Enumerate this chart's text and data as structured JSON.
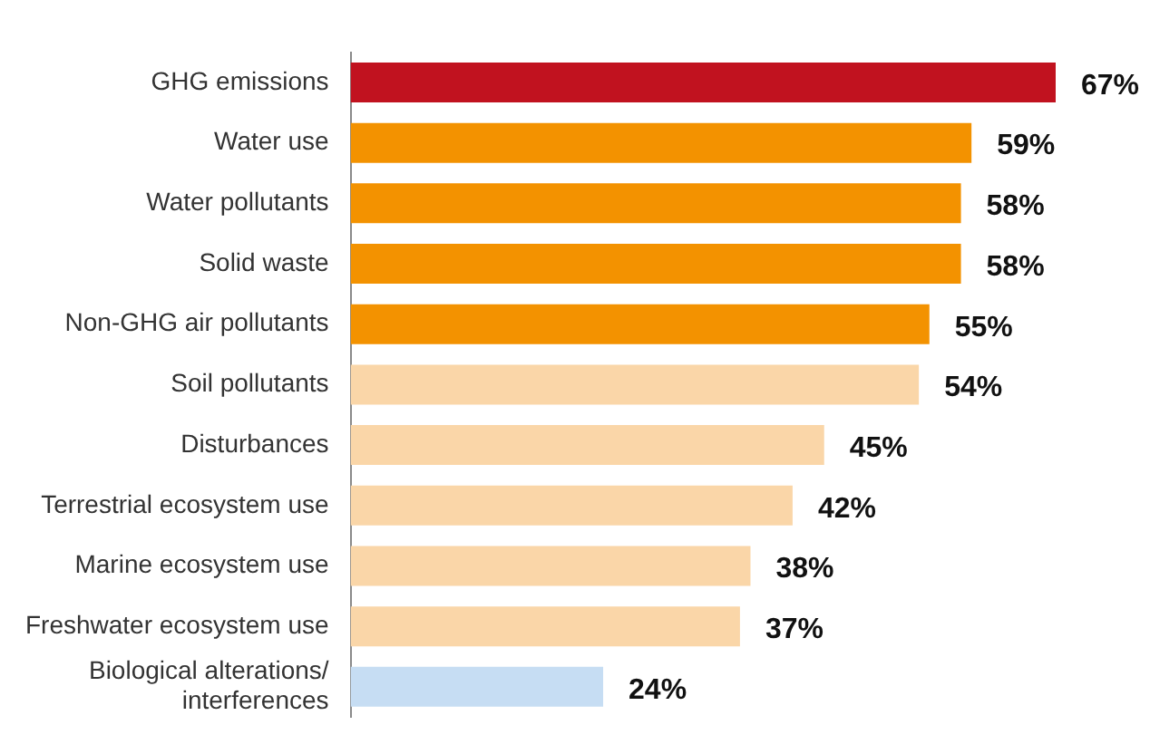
{
  "chart_data": {
    "type": "bar",
    "orientation": "horizontal",
    "categories": [
      "GHG emissions",
      "Water use",
      "Water pollutants",
      "Solid waste",
      "Non-GHG air pollutants",
      "Soil pollutants",
      "Disturbances",
      "Terrestrial ecosystem use",
      "Marine ecosystem use",
      "Freshwater ecosystem use",
      "Biological alterations/ interferences"
    ],
    "values": [
      67,
      59,
      58,
      58,
      55,
      54,
      45,
      42,
      38,
      37,
      24
    ],
    "colors": [
      "#c1121f",
      "#f39200",
      "#f39200",
      "#f39200",
      "#f39200",
      "#fad6a8",
      "#fad6a8",
      "#fad6a8",
      "#fad6a8",
      "#fad6a8",
      "#c6ddf3"
    ],
    "value_labels": [
      "67%",
      "59%",
      "58%",
      "58%",
      "55%",
      "54%",
      "45%",
      "42%",
      "38%",
      "37%",
      "24%"
    ],
    "legend": false
  }
}
